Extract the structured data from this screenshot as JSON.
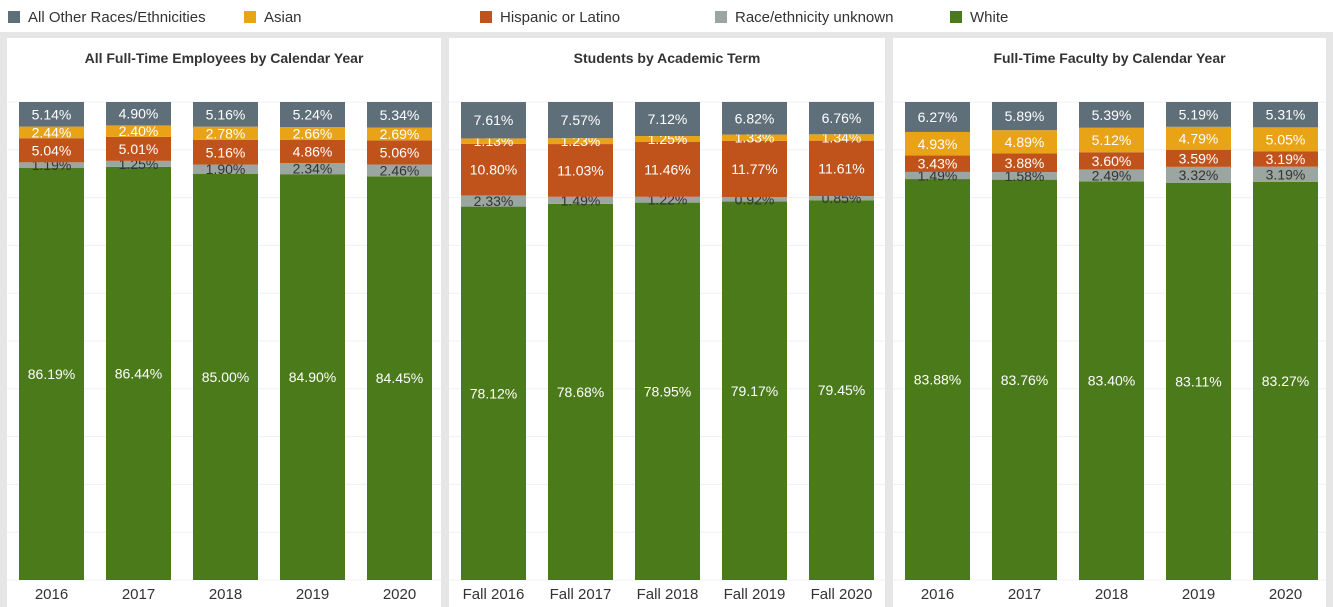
{
  "legend": {
    "items": [
      {
        "label": "All Other Races/Ethnicities",
        "color": "#5f6f7a"
      },
      {
        "label": "Asian",
        "color": "#e8a317"
      },
      {
        "label": "Hispanic or Latino",
        "color": "#c0531b"
      },
      {
        "label": "Race/ethnicity unknown",
        "color": "#9ba6a1"
      },
      {
        "label": "White",
        "color": "#4b7a1b"
      }
    ]
  },
  "chart_data": [
    {
      "type": "bar",
      "stacked": true,
      "title": "All Full-Time Employees by Calendar Year",
      "categories": [
        "2016",
        "2017",
        "2018",
        "2019",
        "2020"
      ],
      "ylim": [
        0,
        100
      ],
      "series": [
        {
          "name": "White",
          "values": [
            86.19,
            86.44,
            85.0,
            84.9,
            84.45
          ],
          "labels": [
            "86.19%",
            "86.44%",
            "85.00%",
            "84.90%",
            "84.45%"
          ]
        },
        {
          "name": "Race/ethnicity unknown",
          "values": [
            1.19,
            1.25,
            1.9,
            2.34,
            2.46
          ],
          "labels": [
            "1.19%",
            "1.25%",
            "1.90%",
            "2.34%",
            "2.46%"
          ]
        },
        {
          "name": "Hispanic or Latino",
          "values": [
            5.04,
            5.01,
            5.16,
            4.86,
            5.06
          ],
          "labels": [
            "5.04%",
            "5.01%",
            "5.16%",
            "4.86%",
            "5.06%"
          ]
        },
        {
          "name": "Asian",
          "values": [
            2.44,
            2.4,
            2.78,
            2.66,
            2.69
          ],
          "labels": [
            "2.44%",
            "2.40%",
            "2.78%",
            "2.66%",
            "2.69%"
          ]
        },
        {
          "name": "All Other Races/Ethnicities",
          "values": [
            5.14,
            4.9,
            5.16,
            5.24,
            5.34
          ],
          "labels": [
            "5.14%",
            "4.90%",
            "5.16%",
            "5.24%",
            "5.34%"
          ]
        }
      ]
    },
    {
      "type": "bar",
      "stacked": true,
      "title": "Students by Academic Term",
      "categories": [
        "Fall 2016",
        "Fall 2017",
        "Fall 2018",
        "Fall 2019",
        "Fall 2020"
      ],
      "ylim": [
        0,
        100
      ],
      "series": [
        {
          "name": "White",
          "values": [
            78.12,
            78.68,
            78.95,
            79.17,
            79.45
          ],
          "labels": [
            "78.12%",
            "78.68%",
            "78.95%",
            "79.17%",
            "79.45%"
          ]
        },
        {
          "name": "Race/ethnicity unknown",
          "values": [
            2.33,
            1.49,
            1.22,
            0.92,
            0.85
          ],
          "labels": [
            "2.33%",
            "1.49%",
            "1.22%",
            "0.92%",
            "0.85%"
          ]
        },
        {
          "name": "Hispanic or Latino",
          "values": [
            10.8,
            11.03,
            11.46,
            11.77,
            11.61
          ],
          "labels": [
            "10.80%",
            "11.03%",
            "11.46%",
            "11.77%",
            "11.61%"
          ]
        },
        {
          "name": "Asian",
          "values": [
            1.13,
            1.23,
            1.25,
            1.33,
            1.34
          ],
          "labels": [
            "1.13%",
            "1.23%",
            "1.25%",
            "1.33%",
            "1.34%"
          ]
        },
        {
          "name": "All Other Races/Ethnicities",
          "values": [
            7.61,
            7.57,
            7.12,
            6.82,
            6.76
          ],
          "labels": [
            "7.61%",
            "7.57%",
            "7.12%",
            "6.82%",
            "6.76%"
          ]
        }
      ]
    },
    {
      "type": "bar",
      "stacked": true,
      "title": "Full-Time Faculty by Calendar Year",
      "categories": [
        "2016",
        "2017",
        "2018",
        "2019",
        "2020"
      ],
      "ylim": [
        0,
        100
      ],
      "series": [
        {
          "name": "White",
          "values": [
            83.88,
            83.76,
            83.4,
            83.11,
            83.27
          ],
          "labels": [
            "83.88%",
            "83.76%",
            "83.40%",
            "83.11%",
            "83.27%"
          ]
        },
        {
          "name": "Race/ethnicity unknown",
          "values": [
            1.49,
            1.58,
            2.49,
            3.32,
            3.19
          ],
          "labels": [
            "1.49%",
            "1.58%",
            "2.49%",
            "3.32%",
            "3.19%"
          ]
        },
        {
          "name": "Hispanic or Latino",
          "values": [
            3.43,
            3.88,
            3.6,
            3.59,
            3.19
          ],
          "labels": [
            "3.43%",
            "3.88%",
            "3.60%",
            "3.59%",
            "3.19%"
          ]
        },
        {
          "name": "Asian",
          "values": [
            4.93,
            4.89,
            5.12,
            4.79,
            5.05
          ],
          "labels": [
            "4.93%",
            "4.89%",
            "5.12%",
            "4.79%",
            "5.05%"
          ]
        },
        {
          "name": "All Other Races/Ethnicities",
          "values": [
            6.27,
            5.89,
            5.39,
            5.19,
            5.31
          ],
          "labels": [
            "6.27%",
            "5.89%",
            "5.39%",
            "5.19%",
            "5.31%"
          ]
        }
      ]
    }
  ]
}
